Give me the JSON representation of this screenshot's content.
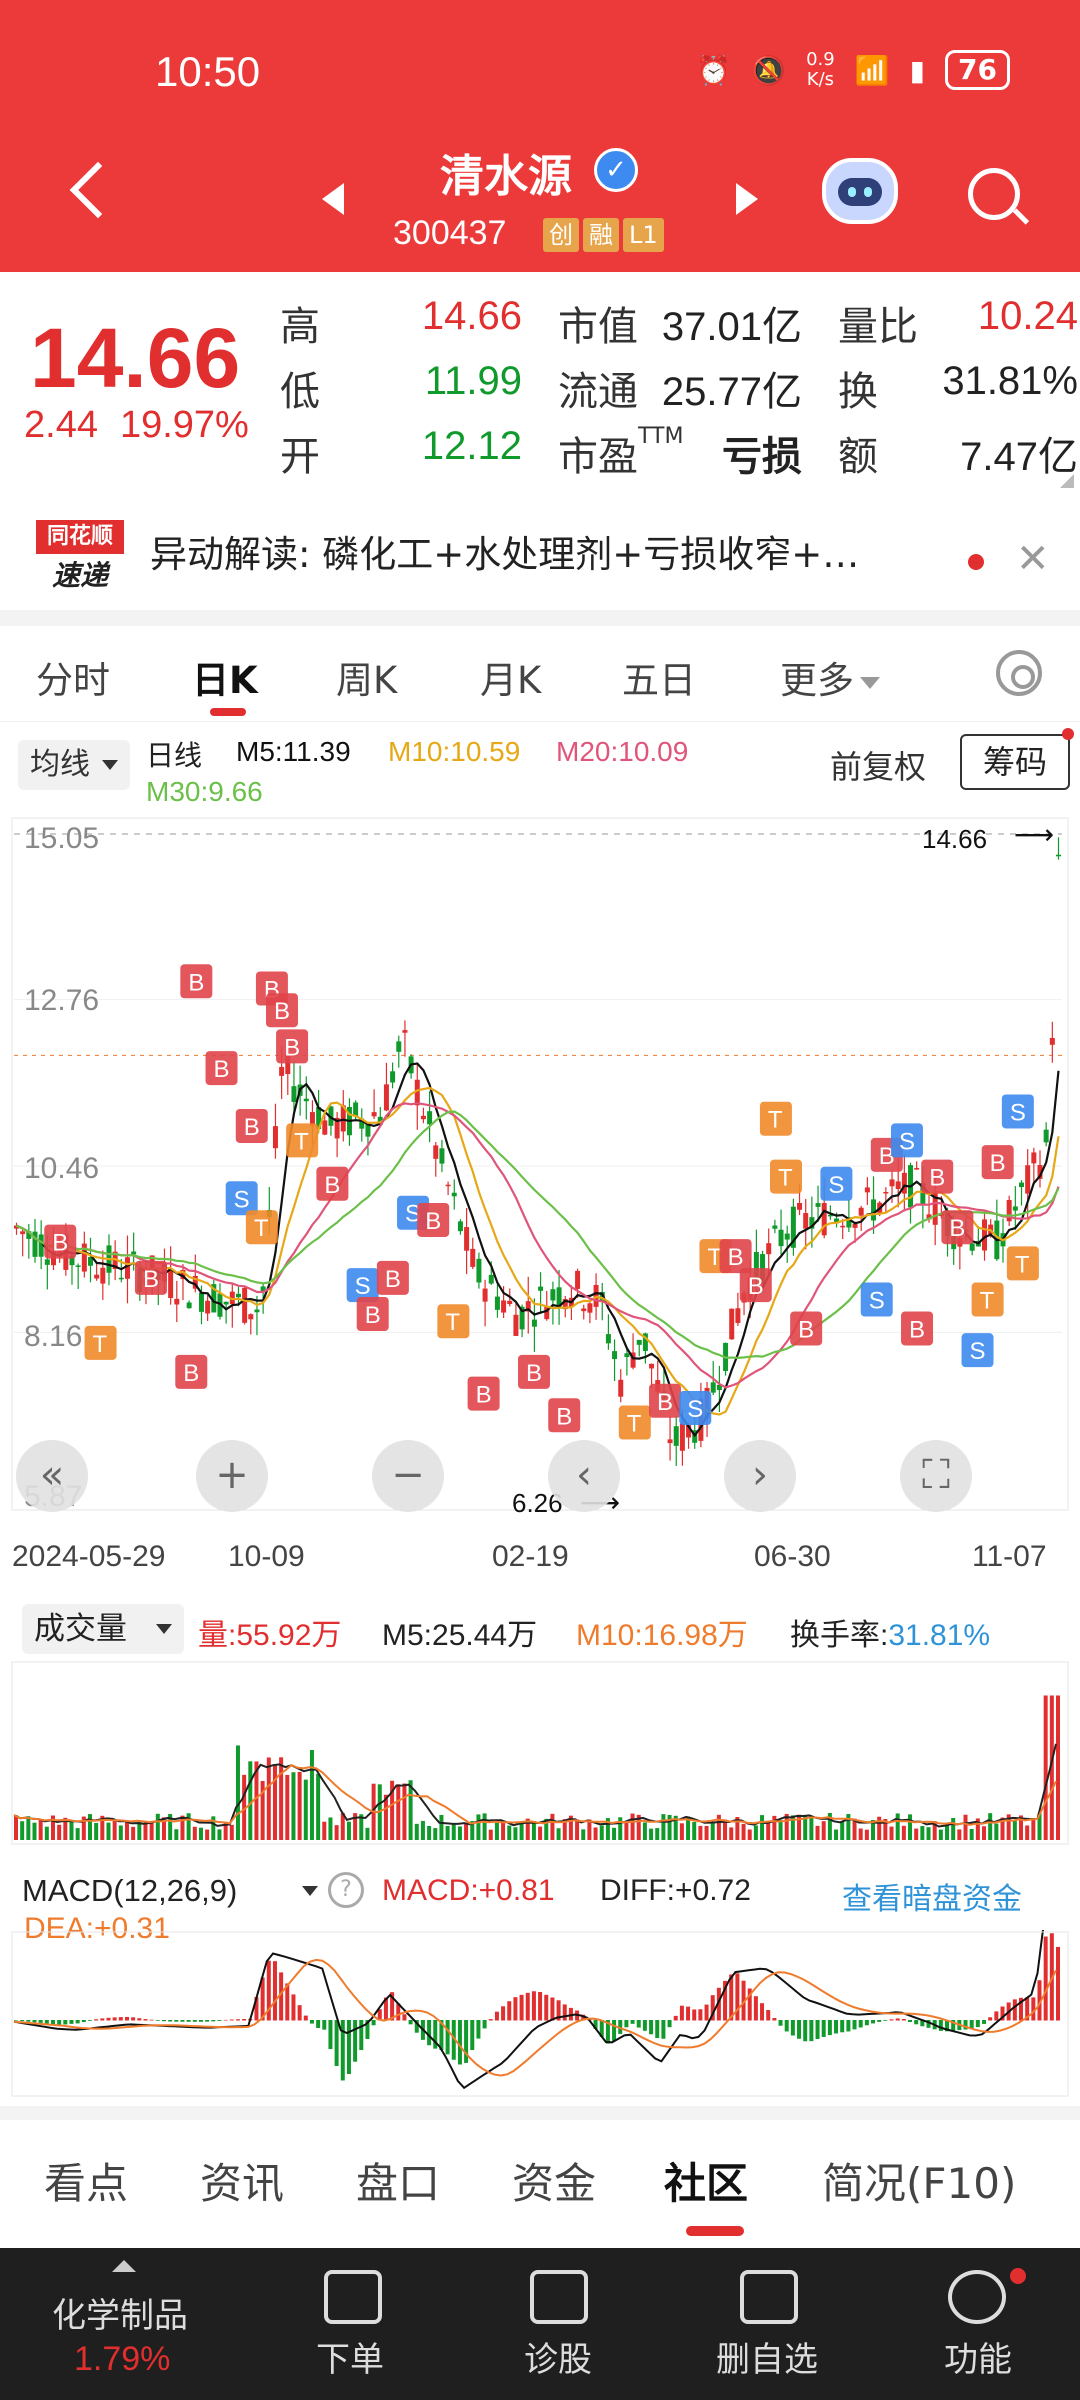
{
  "status": {
    "time": "10:50",
    "speed_top": "0.9",
    "speed_unit": "K/s",
    "battery": "76"
  },
  "stock": {
    "name": "清水源",
    "code": "300437",
    "tags": [
      "创",
      "融",
      "L1"
    ]
  },
  "quote": {
    "price": "14.66",
    "change": "2.44",
    "change_pct": "19.97%",
    "high_label": "高",
    "high": "14.66",
    "low_label": "低",
    "low": "11.99",
    "open_label": "开",
    "open": "12.12",
    "mcap_label": "市值",
    "mcap": "37.01亿",
    "float_label": "流通",
    "float": "25.77亿",
    "pe_label": "市盈",
    "pe_sup": "TTM",
    "pe": "亏损",
    "vr_label": "量比",
    "vr": "10.24",
    "turn_label": "换",
    "turn": "31.81%",
    "amount_label": "额",
    "amount": "7.47亿"
  },
  "news": {
    "logo_top": "同花顺",
    "logo_bottom": "速递",
    "text": "异动解读:  磷化工+水处理剂+亏损收窄+…"
  },
  "tabs": [
    "分时",
    "日K",
    "周K",
    "月K",
    "五日",
    "更多"
  ],
  "ma_legend": {
    "selector": "均线",
    "period": "日线",
    "m5": "M5:11.39",
    "m10": "M10:10.59",
    "m20": "M20:10.09",
    "m30": "M30:9.66",
    "fq": "前复权",
    "chip": "筹码"
  },
  "kline": {
    "y_ticks": [
      "15.05",
      "12.76",
      "10.46",
      "8.16",
      "5.87"
    ],
    "high_mark": "14.66",
    "low_mark": "6.26",
    "x_dates": [
      "2024-05-29",
      "10-09",
      "02-19",
      "06-30",
      "11-07"
    ],
    "controls": {
      "back": "«",
      "zoom_in": "+",
      "zoom_out": "−",
      "prev": "‹",
      "next": "›",
      "fullscreen": "⛶"
    }
  },
  "volume": {
    "selector": "成交量",
    "vol": "量:55.92万",
    "m5": "M5:25.44万",
    "m10": "M10:16.98万",
    "turnover_label": "换手率:",
    "turnover": "31.81%"
  },
  "macd": {
    "selector": "MACD(12,26,9)",
    "help": "?",
    "macd": "MACD:+0.81",
    "diff": "DIFF:+0.72",
    "dea": "DEA:+0.31",
    "link": "查看暗盘资金"
  },
  "bottom_tabs": [
    "看点",
    "资讯",
    "盘口",
    "资金",
    "社区",
    "简况(F10)"
  ],
  "nav": {
    "sector": "化学制品",
    "sector_pct": "1.79%",
    "items": [
      "下单",
      "诊股",
      "删自选",
      "功能"
    ]
  },
  "colors": {
    "header": "#ec3a3a",
    "up": "#e12e2e",
    "down": "#119a2c",
    "m5": "#111111",
    "m10": "#e6a817",
    "m20": "#e0557a",
    "m30": "#6cc04a"
  }
}
